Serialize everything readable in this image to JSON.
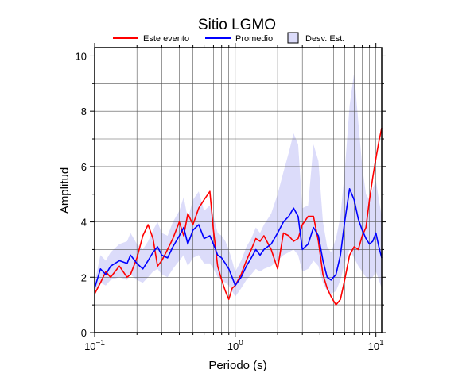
{
  "chart_data": {
    "type": "line",
    "title": "Sitio LGMO",
    "xlabel": "Periodo (s)",
    "ylabel": "Amplitud",
    "x_scale": "log",
    "xlim": [
      0.1,
      11
    ],
    "ylim": [
      0,
      10.3
    ],
    "grid": true,
    "legend_position": "top",
    "y_ticks": [
      "0",
      "2",
      "4",
      "6",
      "8",
      "10"
    ],
    "x_ticks": [
      {
        "value": 0.1,
        "base": "10",
        "exp": "−1"
      },
      {
        "value": 1,
        "base": "10",
        "exp": "0"
      },
      {
        "value": 10,
        "base": "10",
        "exp": "1"
      }
    ],
    "legend": [
      {
        "label": "Este evento",
        "kind": "line",
        "color": "#ff0000"
      },
      {
        "label": "Promedio",
        "kind": "line",
        "color": "#0000ff"
      },
      {
        "label": "Desv. Est.",
        "kind": "patch",
        "color": "#dcdcfa"
      }
    ],
    "series": [
      {
        "name": "Este evento",
        "color": "#ff0000",
        "x": [
          0.1,
          0.11,
          0.12,
          0.13,
          0.15,
          0.17,
          0.18,
          0.2,
          0.22,
          0.24,
          0.26,
          0.28,
          0.3,
          0.33,
          0.36,
          0.4,
          0.43,
          0.46,
          0.5,
          0.55,
          0.6,
          0.66,
          0.7,
          0.75,
          0.8,
          0.85,
          0.9,
          0.95,
          1.0,
          1.1,
          1.2,
          1.3,
          1.4,
          1.5,
          1.6,
          1.8,
          2.0,
          2.2,
          2.4,
          2.6,
          2.8,
          3.0,
          3.3,
          3.6,
          3.9,
          4.2,
          4.5,
          4.8,
          5.2,
          5.6,
          6.0,
          6.5,
          7.0,
          7.5,
          8.0,
          8.5,
          9.0,
          9.5,
          10.0,
          10.5,
          11.0
        ],
        "y": [
          1.4,
          1.8,
          2.2,
          2.0,
          2.4,
          2.0,
          2.1,
          2.7,
          3.5,
          3.9,
          3.4,
          2.4,
          2.6,
          3.0,
          3.4,
          4.0,
          3.5,
          4.3,
          3.9,
          4.5,
          4.8,
          5.1,
          3.7,
          2.4,
          1.9,
          1.5,
          1.2,
          1.6,
          1.7,
          2.1,
          2.6,
          3.0,
          3.4,
          3.3,
          3.5,
          3.0,
          2.3,
          3.6,
          3.5,
          3.3,
          3.4,
          3.9,
          4.2,
          4.2,
          3.3,
          2.1,
          1.6,
          1.3,
          1.0,
          1.2,
          1.9,
          2.8,
          3.1,
          3.0,
          3.5,
          3.8,
          4.8,
          5.6,
          6.3,
          6.9,
          7.4
        ]
      },
      {
        "name": "Promedio",
        "color": "#0000ff",
        "x": [
          0.1,
          0.11,
          0.12,
          0.13,
          0.15,
          0.17,
          0.18,
          0.2,
          0.22,
          0.24,
          0.26,
          0.28,
          0.3,
          0.33,
          0.36,
          0.4,
          0.43,
          0.46,
          0.5,
          0.55,
          0.6,
          0.66,
          0.7,
          0.75,
          0.8,
          0.85,
          0.9,
          0.95,
          1.0,
          1.1,
          1.2,
          1.3,
          1.4,
          1.5,
          1.6,
          1.8,
          2.0,
          2.2,
          2.4,
          2.6,
          2.8,
          3.0,
          3.3,
          3.6,
          3.9,
          4.2,
          4.5,
          4.8,
          5.2,
          5.6,
          6.0,
          6.5,
          7.0,
          7.5,
          8.0,
          8.5,
          9.0,
          9.5,
          10.0,
          10.5,
          11.0
        ],
        "y": [
          1.6,
          2.3,
          2.1,
          2.4,
          2.6,
          2.5,
          2.8,
          2.5,
          2.3,
          2.6,
          2.9,
          3.1,
          2.8,
          2.7,
          3.1,
          3.5,
          3.8,
          3.2,
          3.7,
          3.9,
          3.4,
          3.5,
          3.2,
          2.8,
          2.7,
          2.5,
          2.3,
          2.0,
          1.7,
          2.0,
          2.4,
          2.7,
          3.0,
          2.8,
          3.0,
          3.2,
          3.6,
          4.0,
          4.2,
          4.5,
          4.2,
          3.0,
          3.2,
          3.8,
          3.5,
          2.6,
          2.0,
          1.9,
          2.1,
          2.8,
          4.0,
          5.2,
          4.8,
          4.1,
          3.7,
          3.4,
          3.2,
          3.3,
          3.6,
          3.1,
          2.7
        ]
      }
    ],
    "std_band": {
      "name": "Desv. Est.",
      "color": "#dcdcfa",
      "x": [
        0.1,
        0.11,
        0.12,
        0.13,
        0.15,
        0.17,
        0.18,
        0.2,
        0.22,
        0.24,
        0.26,
        0.28,
        0.3,
        0.33,
        0.36,
        0.4,
        0.43,
        0.46,
        0.5,
        0.55,
        0.6,
        0.66,
        0.7,
        0.75,
        0.8,
        0.85,
        0.9,
        0.95,
        1.0,
        1.1,
        1.2,
        1.3,
        1.4,
        1.5,
        1.6,
        1.8,
        2.0,
        2.2,
        2.4,
        2.6,
        2.8,
        3.0,
        3.3,
        3.6,
        3.9,
        4.2,
        4.5,
        4.8,
        5.2,
        5.6,
        6.0,
        6.5,
        7.0,
        7.5,
        8.0,
        8.5,
        9.0,
        9.5,
        10.0,
        10.5,
        11.0
      ],
      "lower": [
        1.5,
        1.8,
        1.7,
        1.9,
        2.0,
        1.9,
        2.1,
        1.9,
        1.8,
        2.0,
        2.2,
        2.3,
        2.1,
        2.0,
        2.3,
        2.6,
        2.8,
        2.4,
        2.7,
        2.8,
        2.5,
        2.5,
        2.3,
        2.0,
        1.9,
        1.8,
        1.7,
        1.5,
        1.3,
        1.6,
        1.9,
        2.1,
        2.3,
        2.2,
        2.3,
        2.4,
        2.6,
        2.8,
        2.9,
        3.0,
        2.8,
        2.2,
        2.3,
        2.6,
        2.4,
        1.8,
        1.5,
        1.4,
        1.5,
        1.9,
        2.5,
        3.0,
        2.7,
        2.4,
        2.2,
        2.0,
        1.9,
        2.0,
        2.2,
        1.9,
        1.6
      ],
      "upper": [
        1.8,
        2.8,
        2.6,
        2.9,
        3.2,
        3.3,
        3.6,
        3.2,
        3.0,
        3.3,
        3.7,
        4.0,
        3.6,
        3.5,
        4.0,
        4.4,
        4.9,
        4.1,
        4.8,
        5.1,
        4.4,
        4.6,
        4.2,
        3.6,
        3.5,
        3.3,
        3.0,
        2.6,
        2.2,
        2.6,
        3.1,
        3.4,
        3.8,
        3.6,
        3.9,
        4.3,
        5.0,
        5.8,
        6.5,
        7.2,
        6.8,
        4.5,
        4.6,
        6.8,
        6.2,
        4.0,
        3.1,
        2.9,
        3.4,
        4.2,
        5.8,
        8.2,
        9.4,
        7.6,
        6.0,
        5.0,
        4.8,
        5.2,
        5.5,
        4.8,
        4.2
      ]
    }
  }
}
